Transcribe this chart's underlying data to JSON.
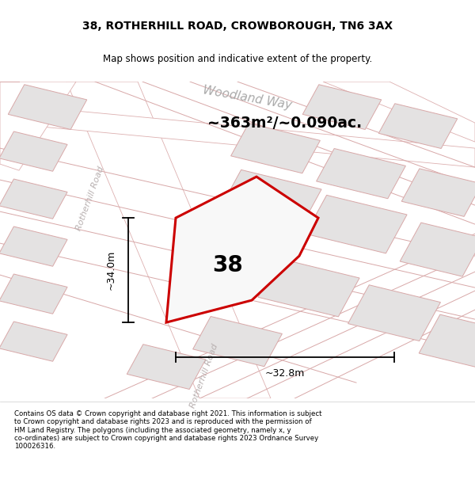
{
  "title_line1": "38, ROTHERHILL ROAD, CROWBOROUGH, TN6 3AX",
  "title_line2": "Map shows position and indicative extent of the property.",
  "area_text": "~363m²/~0.090ac.",
  "house_number": "38",
  "dim_vertical": "~34.0m",
  "dim_horizontal": "~32.8m",
  "road_label_top": "Woodland Way",
  "road_label_left": "Rotherhill Road",
  "road_label_bottom": "Rotherhill Road",
  "footer_text": "Contains OS data © Crown copyright and database right 2021. This information is subject\nto Crown copyright and database rights 2023 and is reproduced with the permission of\nHM Land Registry. The polygons (including the associated geometry, namely x, y\nco-ordinates) are subject to Crown copyright and database rights 2023 Ordnance Survey\n100026316.",
  "map_bg": "#eeecec",
  "road_fill": "#ffffff",
  "road_edge": "#ddb0b0",
  "plot_fill": "#e4e2e2",
  "plot_edge": "#d8a8a8",
  "highlight_fill": "#f8f8f8",
  "highlight_edge": "#cc0000",
  "dim_color": "#000000",
  "label_color_top": "#aaaaaa",
  "label_color_road": "#b8b0b0"
}
